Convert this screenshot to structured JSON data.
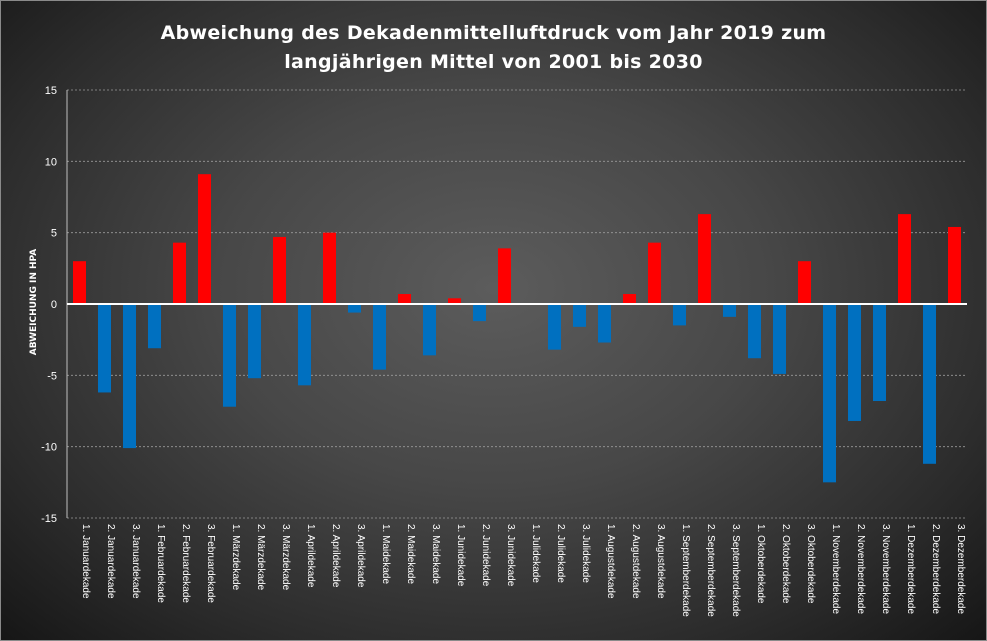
{
  "chart_data": {
    "type": "bar",
    "title_line1": "Abweichung des Dekadenmittelluftdruck vom Jahr 2019 zum",
    "title_line2": "langjährigen Mittel von 2001 bis 2030",
    "xlabel": "",
    "ylabel": "ABWEICHUNG IN HPA",
    "ylim": [
      -15,
      15
    ],
    "yticks": [
      15,
      10,
      5,
      0,
      -5,
      -10,
      -15
    ],
    "grid": true,
    "positive_color": "#ff0000",
    "negative_color": "#0070c0",
    "categories": [
      "1. Januardekade",
      "2. Januardekade",
      "3. Januardekade",
      "1. Februardekade",
      "2. Februardekade",
      "3. Februardekade",
      "1. Märzdekade",
      "2. Märzdekade",
      "3. Märzdekade",
      "1. Aprildekade",
      "2. Aprildekade",
      "3. Aprildekade",
      "1. Maidekade",
      "2. Maidekade",
      "3. Maidekade",
      "1. Junidekade",
      "2. Junidekade",
      "3. Junidekade",
      "1. Julidekade",
      "2. Julidekade",
      "3. Julidekade",
      "1. Augustdekade",
      "2. Augustdekade",
      "3. Augustdekade",
      "1. Septemberdekade",
      "2. Septemberdekade",
      "3. Septemberdekade",
      "1. Oktoberdekade",
      "2. Oktoberdekade",
      "3. Oktoberdekade",
      "1. Novemberdekade",
      "2. Novemberdekade",
      "3. Novemberdekade",
      "1. Dezemberdekade",
      "2. Dezemberdekade",
      "3. Dezemberdekade"
    ],
    "values": [
      3.0,
      -6.2,
      -10.1,
      -3.1,
      4.3,
      9.1,
      -7.2,
      -5.2,
      4.7,
      -5.7,
      5.0,
      -0.6,
      -4.6,
      0.7,
      -3.6,
      0.4,
      -1.2,
      3.9,
      0.0,
      -3.2,
      -1.6,
      -2.7,
      0.7,
      4.3,
      -1.5,
      6.3,
      -0.9,
      -3.8,
      -4.9,
      3.0,
      -12.5,
      -8.2,
      -6.8,
      6.3,
      -11.2,
      5.4
    ]
  }
}
